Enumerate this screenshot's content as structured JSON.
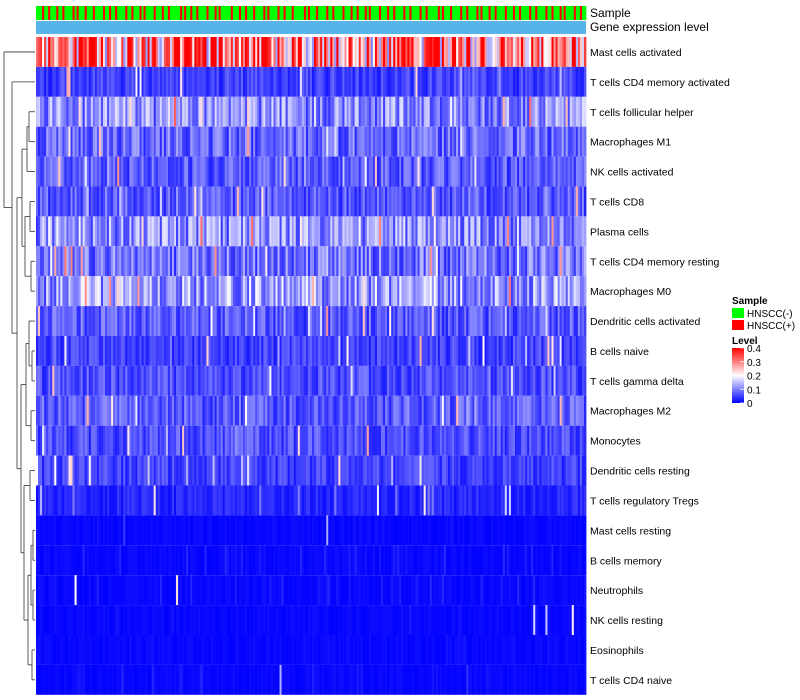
{
  "chart_data": {
    "type": "heatmap",
    "title": "",
    "annotation_tracks": [
      {
        "name": "Sample"
      },
      {
        "name": "Gene expression level"
      }
    ],
    "sample_group_pattern": "GGGRGGRGGGRGGRGGGGRGRGGGRGGGRGGGGRGGRGGRGGGGRGGRGGGRGRGGGGRGGGRGGRGGGGGRGRGGRGGRGGGGRGGGRGRGGGGGRGGGRGGRGGGRGGGGRGRGGGGRGGRGGGRGGGGGRGRGGGRGGGGRGGRGGGGRGGGRGGRGGGRGRGGGGRGGGRGGRGGGGRGGRGGGGRGGRGGGGGRGRGGGRGGGGRGGRGGGGRGRGGGRGGRGGGGRGGGRGGRGGGGRGGRGGGGRGGRGGGRGRGGGGRGGRGG",
    "rows": [
      {
        "label": "Mast cells activated",
        "level_mean": 0.3
      },
      {
        "label": "T cells CD4 memory activated",
        "level_mean": 0.05
      },
      {
        "label": "T cells follicular helper",
        "level_mean": 0.11
      },
      {
        "label": "Macrophages M1",
        "level_mean": 0.08
      },
      {
        "label": "NK cells activated",
        "level_mean": 0.07
      },
      {
        "label": "T cells CD8",
        "level_mean": 0.07
      },
      {
        "label": "Plasma cells",
        "level_mean": 0.11
      },
      {
        "label": "T cells CD4 memory resting",
        "level_mean": 0.09
      },
      {
        "label": "Macrophages M0",
        "level_mean": 0.12
      },
      {
        "label": "Dendritic cells activated",
        "level_mean": 0.07
      },
      {
        "label": "B cells naive",
        "level_mean": 0.05
      },
      {
        "label": "T cells gamma delta",
        "level_mean": 0.06
      },
      {
        "label": "Macrophages M2",
        "level_mean": 0.07
      },
      {
        "label": "Monocytes",
        "level_mean": 0.06
      },
      {
        "label": "Dendritic cells resting",
        "level_mean": 0.05
      },
      {
        "label": "T cells regulatory  Tregs",
        "level_mean": 0.03
      },
      {
        "label": "Mast cells resting",
        "level_mean": 0.01
      },
      {
        "label": "B cells memory",
        "level_mean": 0.02
      },
      {
        "label": "Neutrophils",
        "level_mean": 0.02
      },
      {
        "label": "NK cells resting",
        "level_mean": 0.01
      },
      {
        "label": "Eosinophils",
        "level_mean": 0.01
      },
      {
        "label": "T cells CD4 naive",
        "level_mean": 0.02
      }
    ],
    "legend_sample": {
      "title": "Sample",
      "items": [
        {
          "label": "HNSCC(-)",
          "color": "#00ff00"
        },
        {
          "label": "HNSCC(+)",
          "color": "#ff0000"
        }
      ]
    },
    "legend_level": {
      "title": "Level",
      "ticks": [
        "0.4",
        "0.3",
        "0.2",
        "0.1",
        "0"
      ],
      "tick_values": [
        0.4,
        0.3,
        0.2,
        0.1,
        0
      ],
      "range": [
        0,
        0.4
      ],
      "colors": {
        "low": "#0000ff",
        "mid": "#ffffff",
        "high": "#ff0000"
      }
    },
    "track_colors": {
      "expression": "#56b4e9"
    }
  }
}
